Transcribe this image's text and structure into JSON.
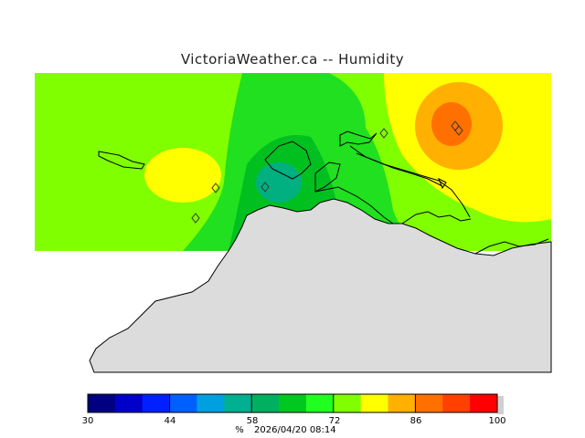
{
  "title": "VictoriaWeather.ca -- Humidity",
  "legend": {
    "ticks": [
      "30",
      "44",
      "58",
      "72",
      "86",
      "100"
    ],
    "unit": "%",
    "timestamp": "2026/04/20 08:14",
    "colors": [
      "#000080",
      "#0000c8",
      "#0020ff",
      "#0060ff",
      "#00a0e0",
      "#00b090",
      "#00b060",
      "#00c820",
      "#20ff20",
      "#80ff00",
      "#ffff00",
      "#ffb000",
      "#ff7000",
      "#ff4000",
      "#ff0000"
    ]
  },
  "map": {
    "land_color": "#dcdcdc",
    "field_colors": {
      "base": "#80ff00",
      "green": "#20e020",
      "dark_green": "#00c020",
      "teal": "#00b080",
      "yellow": "#ffff00",
      "orange": "#ffb000",
      "dark_orange": "#ff7000"
    },
    "stations": [
      "station-1",
      "station-2",
      "station-3",
      "station-4",
      "station-5",
      "station-6"
    ]
  }
}
